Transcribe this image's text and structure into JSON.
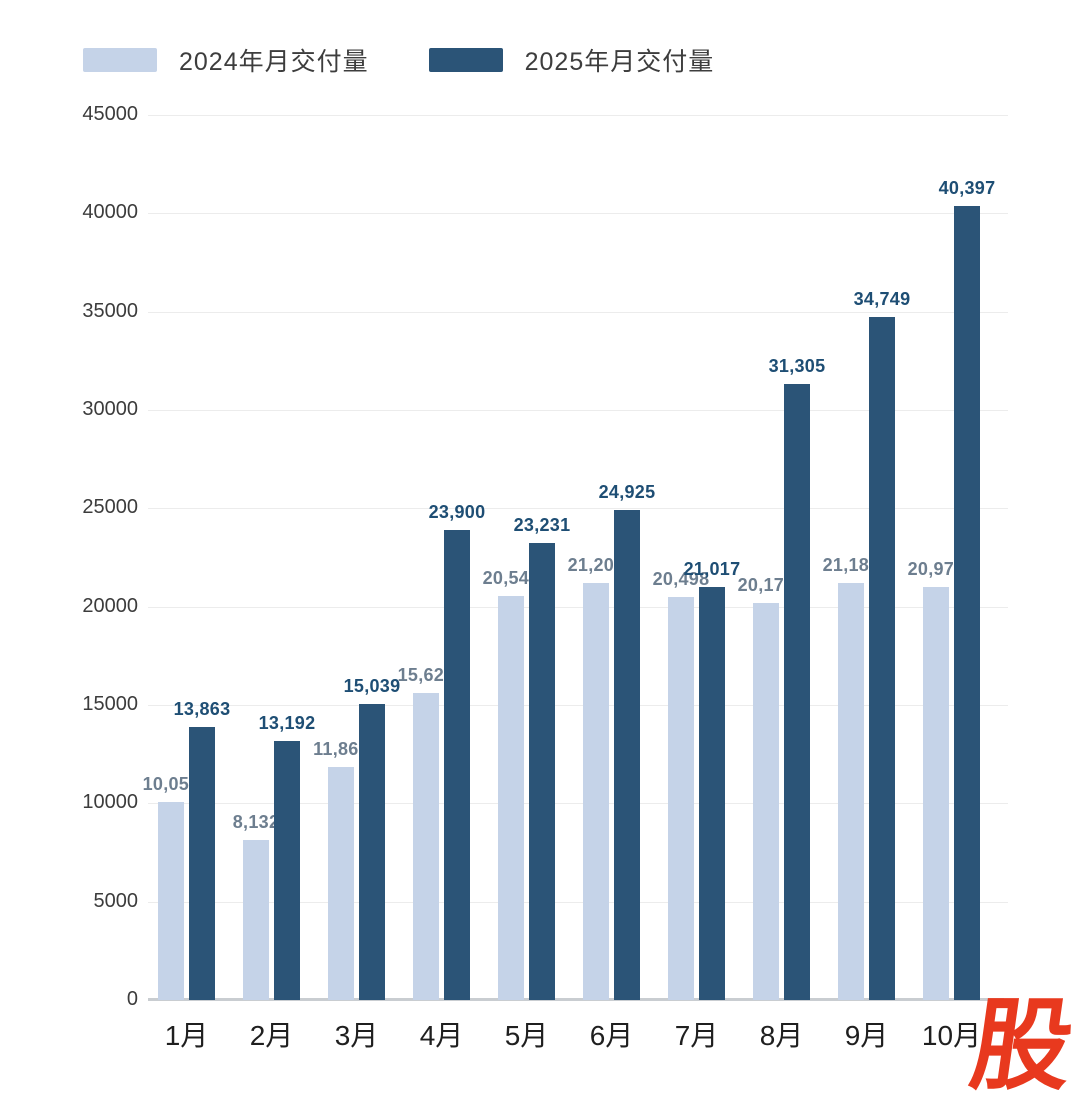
{
  "legend": {
    "items": [
      {
        "label": "2024年月交付量",
        "color": "#c5d3e8"
      },
      {
        "label": "2025年月交付量",
        "color": "#2b5477"
      }
    ]
  },
  "chart_data": {
    "type": "bar",
    "title": "",
    "xlabel": "",
    "ylabel": "",
    "categories": [
      "1月",
      "2月",
      "3月",
      "4月",
      "5月",
      "6月",
      "7月",
      "8月",
      "9月",
      "10月"
    ],
    "series": [
      {
        "name": "2024年月交付量",
        "color": "#c5d3e8",
        "label_color": "#6d7e8f",
        "values": [
          10055,
          8132,
          11866,
          15620,
          20544,
          21209,
          20498,
          20176,
          21181,
          20976
        ]
      },
      {
        "name": "2025年月交付量",
        "color": "#2b5477",
        "label_color": "#1e4e74",
        "values": [
          13863,
          13192,
          15039,
          23900,
          23231,
          24925,
          21017,
          31305,
          34749,
          40397
        ]
      }
    ],
    "ylim": [
      0,
      45000
    ],
    "yticks": [
      0,
      5000,
      10000,
      15000,
      20000,
      25000,
      30000,
      35000,
      40000,
      45000
    ],
    "grid": true,
    "legend_position": "top-left",
    "gridline_color": "#ececec",
    "baseline_color": "#c9cdd1"
  },
  "watermark": {
    "text": "股",
    "color": "#e8391e"
  }
}
